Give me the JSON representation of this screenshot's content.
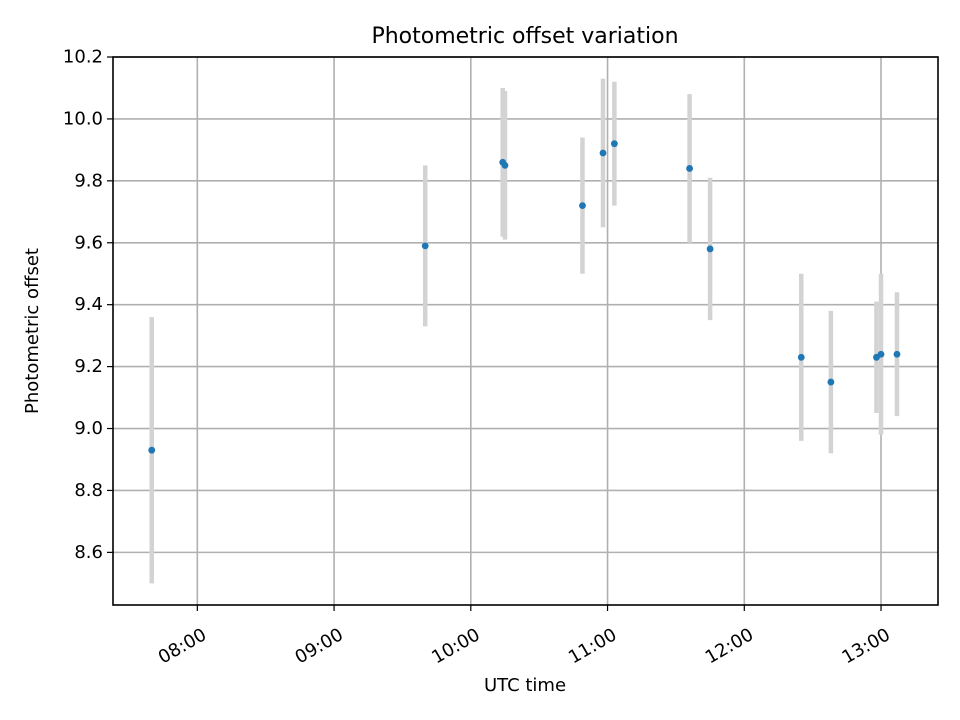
{
  "chart_data": {
    "type": "scatter",
    "title": "Photometric offset variation",
    "xlabel": "UTC time",
    "ylabel": "Photometric offset",
    "x_axis_kind": "time",
    "x_range": [
      "07:23",
      "13:25"
    ],
    "y_range": [
      8.43,
      10.2
    ],
    "x_ticks": [
      "08:00",
      "09:00",
      "10:00",
      "11:00",
      "12:00",
      "13:00"
    ],
    "y_ticks": [
      8.6,
      8.8,
      9.0,
      9.2,
      9.4,
      9.6,
      9.8,
      10.0,
      10.2
    ],
    "y_tick_labels": [
      "8.6",
      "8.8",
      "9.0",
      "9.2",
      "9.4",
      "9.6",
      "9.8",
      "10.0",
      "10.2"
    ],
    "x_tick_rotation_deg": 30,
    "grid": true,
    "legend": "none",
    "colors": {
      "point": "#1f77b4",
      "errorbar": "#d3d3d3"
    },
    "series": [
      {
        "points": [
          {
            "x": "07:40",
            "y": 8.93,
            "yerr": 0.43
          },
          {
            "x": "09:40",
            "y": 9.59,
            "yerr": 0.26
          },
          {
            "x": "10:14",
            "y": 9.86,
            "yerr": 0.24
          },
          {
            "x": "10:15",
            "y": 9.85,
            "yerr": 0.24
          },
          {
            "x": "10:49",
            "y": 9.72,
            "yerr": 0.22
          },
          {
            "x": "10:58",
            "y": 9.89,
            "yerr": 0.24
          },
          {
            "x": "11:03",
            "y": 9.92,
            "yerr": 0.2
          },
          {
            "x": "11:36",
            "y": 9.84,
            "yerr": 0.24
          },
          {
            "x": "11:45",
            "y": 9.58,
            "yerr": 0.23
          },
          {
            "x": "12:25",
            "y": 9.23,
            "yerr": 0.27
          },
          {
            "x": "12:38",
            "y": 9.15,
            "yerr": 0.23
          },
          {
            "x": "12:58",
            "y": 9.23,
            "yerr": 0.18
          },
          {
            "x": "13:00",
            "y": 9.24,
            "yerr": 0.26
          },
          {
            "x": "13:07",
            "y": 9.24,
            "yerr": 0.2
          }
        ]
      }
    ]
  }
}
